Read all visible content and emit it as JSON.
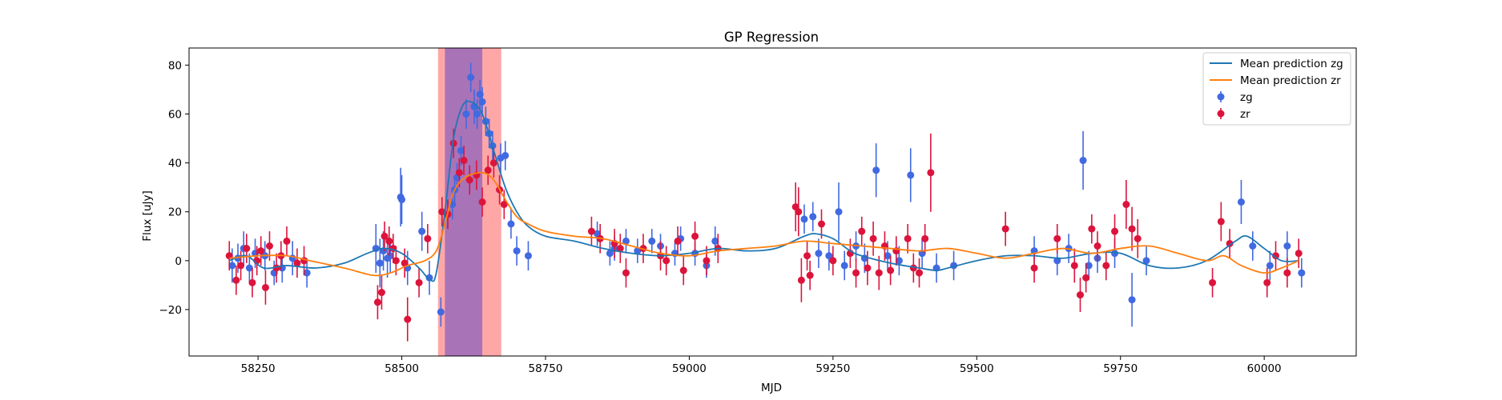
{
  "chart_data": {
    "type": "scatter",
    "title": "GP Regression",
    "xlabel": "MJD",
    "ylabel": "Flux [uJy]",
    "xlim": [
      58130,
      60160
    ],
    "ylim": [
      -39,
      87
    ],
    "x_ticks": [
      58250,
      58500,
      58750,
      59000,
      59250,
      59500,
      59750,
      60000
    ],
    "y_ticks": [
      -20,
      0,
      20,
      40,
      60,
      80
    ],
    "grid": false,
    "legend_position": "top-right",
    "colors": {
      "zg": "#4169e1",
      "zr": "#dc143c",
      "mean_zg": "#1f77b4",
      "mean_zr": "#ff7f0e",
      "band_zr": "#ff9896",
      "band_zg": "#9467bd"
    },
    "shaded_regions": [
      {
        "x0": 58563,
        "x1": 58673,
        "color": "#ff9896"
      },
      {
        "x0": 58575,
        "x1": 58640,
        "color": "#9467bd"
      }
    ],
    "series": [
      {
        "name": "Mean prediction zg",
        "kind": "line",
        "x": [
          58200,
          58230,
          58260,
          58300,
          58350,
          58400,
          58440,
          58470,
          58500,
          58530,
          58550,
          58560,
          58575,
          58590,
          58605,
          58620,
          58640,
          58660,
          58680,
          58700,
          58720,
          58750,
          58800,
          58850,
          58900,
          58950,
          59000,
          59050,
          59100,
          59150,
          59200,
          59220,
          59250,
          59280,
          59300,
          59350,
          59400,
          59430,
          59450,
          59500,
          59550,
          59600,
          59650,
          59700,
          59750,
          59800,
          59850,
          59900,
          59950,
          59970,
          60000,
          60030,
          60060
        ],
        "y": [
          0,
          2,
          -3,
          -2,
          -3,
          -1,
          3,
          5,
          3,
          -3,
          -8,
          -5,
          20,
          50,
          63,
          65,
          60,
          45,
          30,
          20,
          14,
          10,
          8,
          5,
          3,
          2,
          3,
          5,
          4,
          5,
          10,
          11,
          9,
          4,
          2,
          -1,
          -3,
          -4,
          -3,
          0,
          2,
          2,
          1,
          3,
          3,
          -2,
          -3,
          0,
          8,
          10,
          5,
          0,
          0
        ]
      },
      {
        "name": "Mean prediction zr",
        "kind": "line",
        "x": [
          58200,
          58250,
          58300,
          58340,
          58400,
          58450,
          58480,
          58510,
          58540,
          58560,
          58575,
          58590,
          58610,
          58640,
          58660,
          58680,
          58700,
          58720,
          58750,
          58800,
          58850,
          58900,
          58950,
          59000,
          59050,
          59100,
          59150,
          59200,
          59250,
          59300,
          59350,
          59400,
          59450,
          59500,
          59550,
          59600,
          59650,
          59700,
          59750,
          59800,
          59850,
          59900,
          59930,
          59960,
          60000,
          60030,
          60060
        ],
        "y": [
          1,
          2,
          2,
          0,
          -3,
          -6,
          -5,
          -2,
          0,
          4,
          15,
          28,
          34,
          36,
          33,
          25,
          18,
          15,
          12,
          10,
          9,
          6,
          3,
          2,
          4,
          5,
          6,
          8,
          7,
          6,
          5,
          4,
          5,
          3,
          1,
          3,
          5,
          3,
          5,
          6,
          3,
          0,
          2,
          -2,
          -5,
          -3,
          0
        ]
      },
      {
        "name": "zg",
        "kind": "errorbar",
        "x": [
          58205,
          58215,
          58225,
          58235,
          58245,
          58262,
          58278,
          58292,
          58310,
          58335,
          58455,
          58462,
          58468,
          58475,
          58480,
          58498,
          58500,
          58510,
          58535,
          58548,
          58568,
          58580,
          58588,
          58592,
          58596,
          58603,
          58612,
          58620,
          58626,
          58631,
          58636,
          58640,
          58646,
          58652,
          58658,
          58672,
          58680,
          58690,
          58700,
          58720,
          58840,
          58862,
          58870,
          58890,
          58910,
          58935,
          58950,
          58975,
          58985,
          59010,
          59030,
          59045,
          59200,
          59215,
          59225,
          59243,
          59260,
          59270,
          59290,
          59305,
          59325,
          59345,
          59365,
          59385,
          59405,
          59430,
          59460,
          59600,
          59640,
          59660,
          59685,
          59695,
          59710,
          59740,
          59770,
          59795,
          59960,
          59980,
          60010,
          60040,
          60065
        ],
        "y": [
          -2,
          1,
          5,
          -3,
          3,
          2,
          -5,
          -3,
          1,
          -5,
          5,
          -1,
          4,
          1,
          2,
          26,
          25,
          -3,
          12,
          -7,
          -21,
          19,
          23,
          29,
          34,
          45,
          60,
          75,
          63,
          60,
          68,
          65,
          57,
          52,
          47,
          42,
          43,
          15,
          4,
          2,
          11,
          3,
          5,
          8,
          4,
          8,
          6,
          3,
          9,
          3,
          -2,
          8,
          17,
          18,
          3,
          2,
          20,
          -2,
          6,
          1,
          37,
          2,
          0,
          35,
          3,
          -3,
          -2,
          4,
          0,
          5,
          41,
          -2,
          1,
          3,
          -16,
          0,
          24,
          6,
          -2,
          6,
          -5
        ],
        "err": [
          7,
          6,
          7,
          6,
          6,
          6,
          5,
          6,
          7,
          6,
          10,
          10,
          8,
          8,
          7,
          12,
          10,
          7,
          8,
          7,
          6,
          6,
          6,
          6,
          6,
          6,
          6,
          6,
          7,
          6,
          6,
          6,
          6,
          6,
          6,
          6,
          6,
          6,
          6,
          6,
          5,
          5,
          5,
          5,
          5,
          5,
          5,
          5,
          5,
          5,
          5,
          6,
          6,
          6,
          6,
          6,
          12,
          6,
          6,
          6,
          11,
          6,
          6,
          11,
          6,
          6,
          6,
          6,
          6,
          6,
          12,
          6,
          6,
          6,
          11,
          6,
          9,
          6,
          6,
          6,
          6
        ]
      },
      {
        "name": "zr",
        "kind": "errorbar",
        "x": [
          58200,
          58212,
          58220,
          58230,
          58240,
          58248,
          58255,
          58263,
          58270,
          58282,
          58290,
          58300,
          58318,
          58330,
          58458,
          58465,
          58470,
          58478,
          58485,
          58490,
          58505,
          58510,
          58530,
          58545,
          58570,
          58580,
          58590,
          58600,
          58608,
          58618,
          58630,
          58640,
          58650,
          58660,
          58670,
          58678,
          58830,
          58845,
          58870,
          58880,
          58890,
          58920,
          58950,
          58960,
          58980,
          58990,
          59010,
          59030,
          59050,
          59185,
          59190,
          59195,
          59205,
          59210,
          59230,
          59250,
          59280,
          59290,
          59300,
          59310,
          59320,
          59330,
          59340,
          59350,
          59360,
          59380,
          59390,
          59400,
          59410,
          59420,
          59550,
          59600,
          59640,
          59670,
          59680,
          59690,
          59700,
          59710,
          59725,
          59740,
          59760,
          59770,
          59780,
          59910,
          59925,
          59940,
          60005,
          60020,
          60040,
          60060
        ],
        "y": [
          2,
          -8,
          -2,
          5,
          -9,
          0,
          4,
          -11,
          6,
          -3,
          2,
          8,
          -1,
          0,
          -17,
          -13,
          10,
          8,
          5,
          0,
          -1,
          -24,
          -9,
          9,
          20,
          19,
          48,
          36,
          41,
          33,
          35,
          24,
          37,
          40,
          29,
          23,
          12,
          9,
          7,
          5,
          -5,
          5,
          2,
          0,
          8,
          -4,
          10,
          0,
          5,
          22,
          20,
          -8,
          2,
          -6,
          15,
          0,
          3,
          -5,
          12,
          -3,
          9,
          -5,
          6,
          -4,
          4,
          9,
          -3,
          -5,
          9,
          36,
          13,
          -3,
          9,
          -2,
          -14,
          -7,
          13,
          6,
          -2,
          12,
          23,
          13,
          9,
          -9,
          16,
          7,
          -9,
          2,
          -5,
          3
        ],
        "err": [
          6,
          6,
          6,
          6,
          6,
          6,
          6,
          7,
          6,
          6,
          6,
          6,
          6,
          6,
          7,
          7,
          6,
          6,
          6,
          6,
          6,
          9,
          6,
          6,
          6,
          6,
          6,
          6,
          6,
          6,
          6,
          6,
          6,
          6,
          6,
          6,
          6,
          6,
          6,
          6,
          6,
          6,
          6,
          6,
          6,
          6,
          6,
          6,
          6,
          10,
          10,
          9,
          6,
          6,
          6,
          6,
          6,
          6,
          6,
          7,
          7,
          7,
          6,
          6,
          6,
          6,
          6,
          6,
          6,
          16,
          7,
          6,
          6,
          7,
          7,
          6,
          6,
          6,
          6,
          7,
          10,
          9,
          8,
          6,
          8,
          6,
          6,
          6,
          6,
          6
        ]
      }
    ]
  }
}
